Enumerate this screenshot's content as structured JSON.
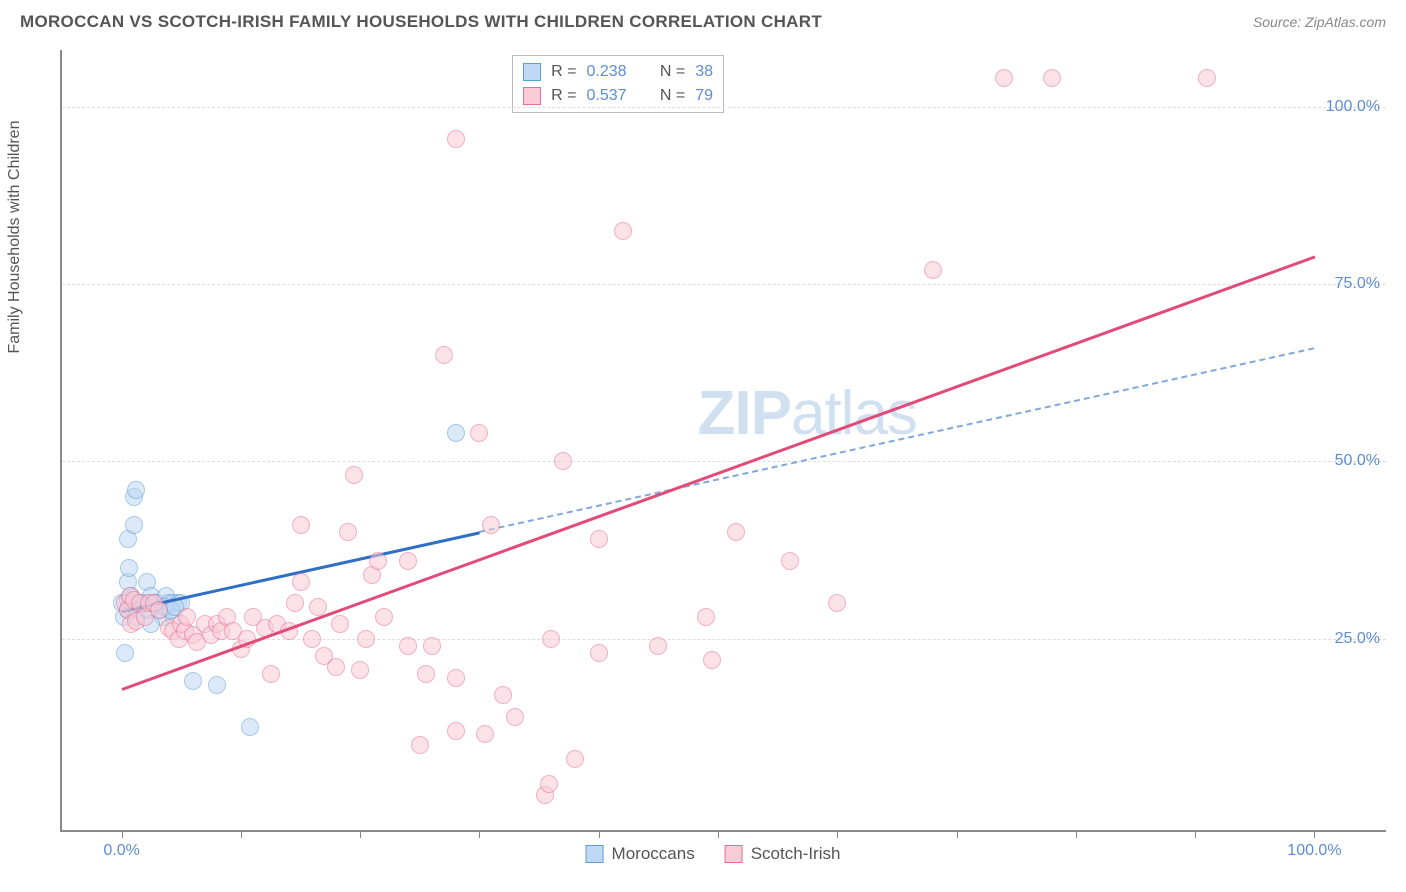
{
  "title": "MOROCCAN VS SCOTCH-IRISH FAMILY HOUSEHOLDS WITH CHILDREN CORRELATION CHART",
  "source_prefix": "Source: ",
  "source_name": "ZipAtlas.com",
  "ylabel": "Family Households with Children",
  "watermark_a": "ZIP",
  "watermark_b": "atlas",
  "chart": {
    "type": "scatter",
    "xlim": [
      -5,
      106
    ],
    "ylim": [
      -2,
      108
    ],
    "x_ticks": [
      0,
      10,
      20,
      30,
      40,
      50,
      60,
      70,
      80,
      90,
      100
    ],
    "x_tick_labels": {
      "0": "0.0%",
      "100": "100.0%"
    },
    "y_ticks": [
      25,
      50,
      75,
      100
    ],
    "y_tick_labels": {
      "25": "25.0%",
      "50": "50.0%",
      "75": "75.0%",
      "100": "100.0%"
    },
    "background_color": "#ffffff",
    "grid_color": "#dddddd",
    "axis_color": "#888888",
    "tick_label_color": "#5b8dd6",
    "marker_radius": 9,
    "series": [
      {
        "name": "Moroccans",
        "label": "Moroccans",
        "fill": "#bfd8f3",
        "stroke": "#5f9cd8",
        "R_label": "R =",
        "R": "0.238",
        "N_label": "N =",
        "N": "38",
        "regression": {
          "x0": 0,
          "y0": 29,
          "x1": 100,
          "y1": 66,
          "solid_until_x": 30,
          "color": "#2f6fc4",
          "width": 2.5
        },
        "points": [
          [
            0,
            30
          ],
          [
            0.5,
            33
          ],
          [
            0.6,
            35
          ],
          [
            0.5,
            39
          ],
          [
            1,
            41
          ],
          [
            1,
            45
          ],
          [
            1.2,
            46
          ],
          [
            0.2,
            28
          ],
          [
            0.5,
            29
          ],
          [
            0.8,
            30
          ],
          [
            1.3,
            29
          ],
          [
            1.5,
            30
          ],
          [
            2,
            30
          ],
          [
            2.1,
            33
          ],
          [
            2.5,
            31
          ],
          [
            2.7,
            30
          ],
          [
            3,
            30
          ],
          [
            3.2,
            29
          ],
          [
            3.5,
            28
          ],
          [
            3.7,
            31
          ],
          [
            4,
            30
          ],
          [
            4.3,
            30
          ],
          [
            4.4,
            28
          ],
          [
            4.7,
            30
          ],
          [
            5,
            30
          ],
          [
            0.5,
            30.5
          ],
          [
            0.8,
            31
          ],
          [
            1.2,
            28
          ],
          [
            2.2,
            29
          ],
          [
            3.6,
            29.5
          ],
          [
            4.1,
            29
          ],
          [
            0.3,
            23
          ],
          [
            2.5,
            27
          ],
          [
            4.5,
            29.5
          ],
          [
            6,
            19
          ],
          [
            8,
            18.5
          ],
          [
            10.8,
            12.5
          ],
          [
            28,
            54
          ]
        ]
      },
      {
        "name": "Scotch-Irish",
        "label": "Scotch-Irish",
        "fill": "#f9cbd7",
        "stroke": "#e76f93",
        "R_label": "R =",
        "R": "0.537",
        "N_label": "N =",
        "N": "79",
        "regression": {
          "x0": 0,
          "y0": 18,
          "x1": 100,
          "y1": 79,
          "solid_until_x": 100,
          "color": "#e24a78",
          "width": 3
        },
        "points": [
          [
            0.3,
            30
          ],
          [
            0.5,
            29
          ],
          [
            0.7,
            31
          ],
          [
            1,
            30.5
          ],
          [
            1.5,
            30
          ],
          [
            0.8,
            27
          ],
          [
            1.2,
            27.5
          ],
          [
            2,
            28
          ],
          [
            2.3,
            30
          ],
          [
            2.7,
            30
          ],
          [
            3.1,
            29
          ],
          [
            4,
            26.5
          ],
          [
            4.3,
            26
          ],
          [
            4.8,
            25
          ],
          [
            5,
            27
          ],
          [
            5.3,
            26
          ],
          [
            5.5,
            28
          ],
          [
            6,
            25.5
          ],
          [
            6.3,
            24.5
          ],
          [
            7,
            27
          ],
          [
            7.5,
            25.5
          ],
          [
            8,
            27
          ],
          [
            8.3,
            26
          ],
          [
            8.8,
            28
          ],
          [
            9.3,
            26
          ],
          [
            10,
            23.5
          ],
          [
            10.5,
            25
          ],
          [
            11,
            28
          ],
          [
            12,
            26.5
          ],
          [
            12.5,
            20
          ],
          [
            13,
            27
          ],
          [
            14,
            26
          ],
          [
            14.5,
            30
          ],
          [
            15,
            33
          ],
          [
            15,
            41
          ],
          [
            16,
            25
          ],
          [
            16.5,
            29.5
          ],
          [
            17,
            22.5
          ],
          [
            18,
            21
          ],
          [
            18.3,
            27
          ],
          [
            19,
            40
          ],
          [
            19.5,
            48
          ],
          [
            20,
            20.5
          ],
          [
            20.5,
            25
          ],
          [
            21,
            34
          ],
          [
            21.5,
            36
          ],
          [
            22,
            28
          ],
          [
            24,
            24
          ],
          [
            24,
            36
          ],
          [
            25,
            10
          ],
          [
            25.5,
            20
          ],
          [
            26,
            24
          ],
          [
            27,
            65
          ],
          [
            28,
            12
          ],
          [
            28,
            19.5
          ],
          [
            28,
            95.5
          ],
          [
            30,
            54
          ],
          [
            30.5,
            11.5
          ],
          [
            31,
            41
          ],
          [
            32,
            17
          ],
          [
            33,
            14
          ],
          [
            35.5,
            3
          ],
          [
            35.8,
            4.5
          ],
          [
            36,
            25
          ],
          [
            37,
            50
          ],
          [
            38,
            8
          ],
          [
            40,
            23
          ],
          [
            40,
            39
          ],
          [
            42,
            82.5
          ],
          [
            45,
            24
          ],
          [
            49,
            28
          ],
          [
            49.5,
            22
          ],
          [
            51.5,
            40
          ],
          [
            56,
            36
          ],
          [
            60,
            30
          ],
          [
            68,
            77
          ],
          [
            74,
            104
          ],
          [
            78,
            104
          ],
          [
            91,
            104
          ]
        ]
      }
    ]
  }
}
